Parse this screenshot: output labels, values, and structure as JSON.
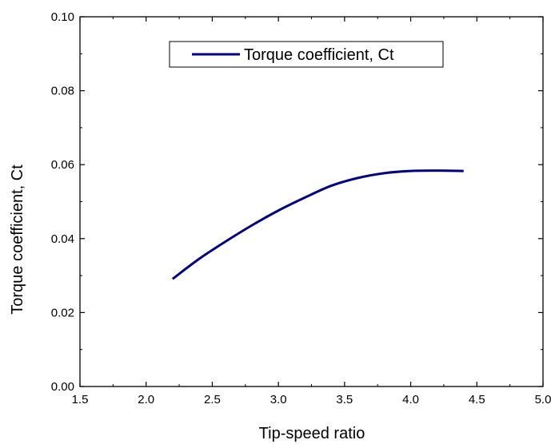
{
  "chart_data": {
    "type": "line",
    "title": "",
    "xlabel": "Tip-speed ratio",
    "ylabel": "Torque coefficient, Ct",
    "xlim": [
      1.5,
      5.0
    ],
    "ylim": [
      0.0,
      0.1
    ],
    "xticks": [
      1.5,
      2.0,
      2.5,
      3.0,
      3.5,
      4.0,
      4.5,
      5.0
    ],
    "xtick_labels": [
      "1.5",
      "2.0",
      "2.5",
      "3.0",
      "3.5",
      "4.0",
      "4.5",
      "5.0"
    ],
    "yticks": [
      0.0,
      0.02,
      0.04,
      0.06,
      0.08,
      0.1
    ],
    "ytick_labels": [
      "0.00",
      "0.02",
      "0.04",
      "0.06",
      "0.08",
      "0.10"
    ],
    "grid": false,
    "legend_position": "top-right",
    "series": [
      {
        "name": "Torque coefficient, Ct",
        "color": "#000080",
        "x": [
          2.2,
          2.4,
          2.6,
          2.8,
          3.0,
          3.2,
          3.4,
          3.6,
          3.8,
          4.0,
          4.2,
          4.4
        ],
        "y": [
          0.0291,
          0.0345,
          0.0392,
          0.0436,
          0.0476,
          0.0511,
          0.0543,
          0.0564,
          0.0577,
          0.0583,
          0.0584,
          0.0583
        ]
      }
    ]
  }
}
